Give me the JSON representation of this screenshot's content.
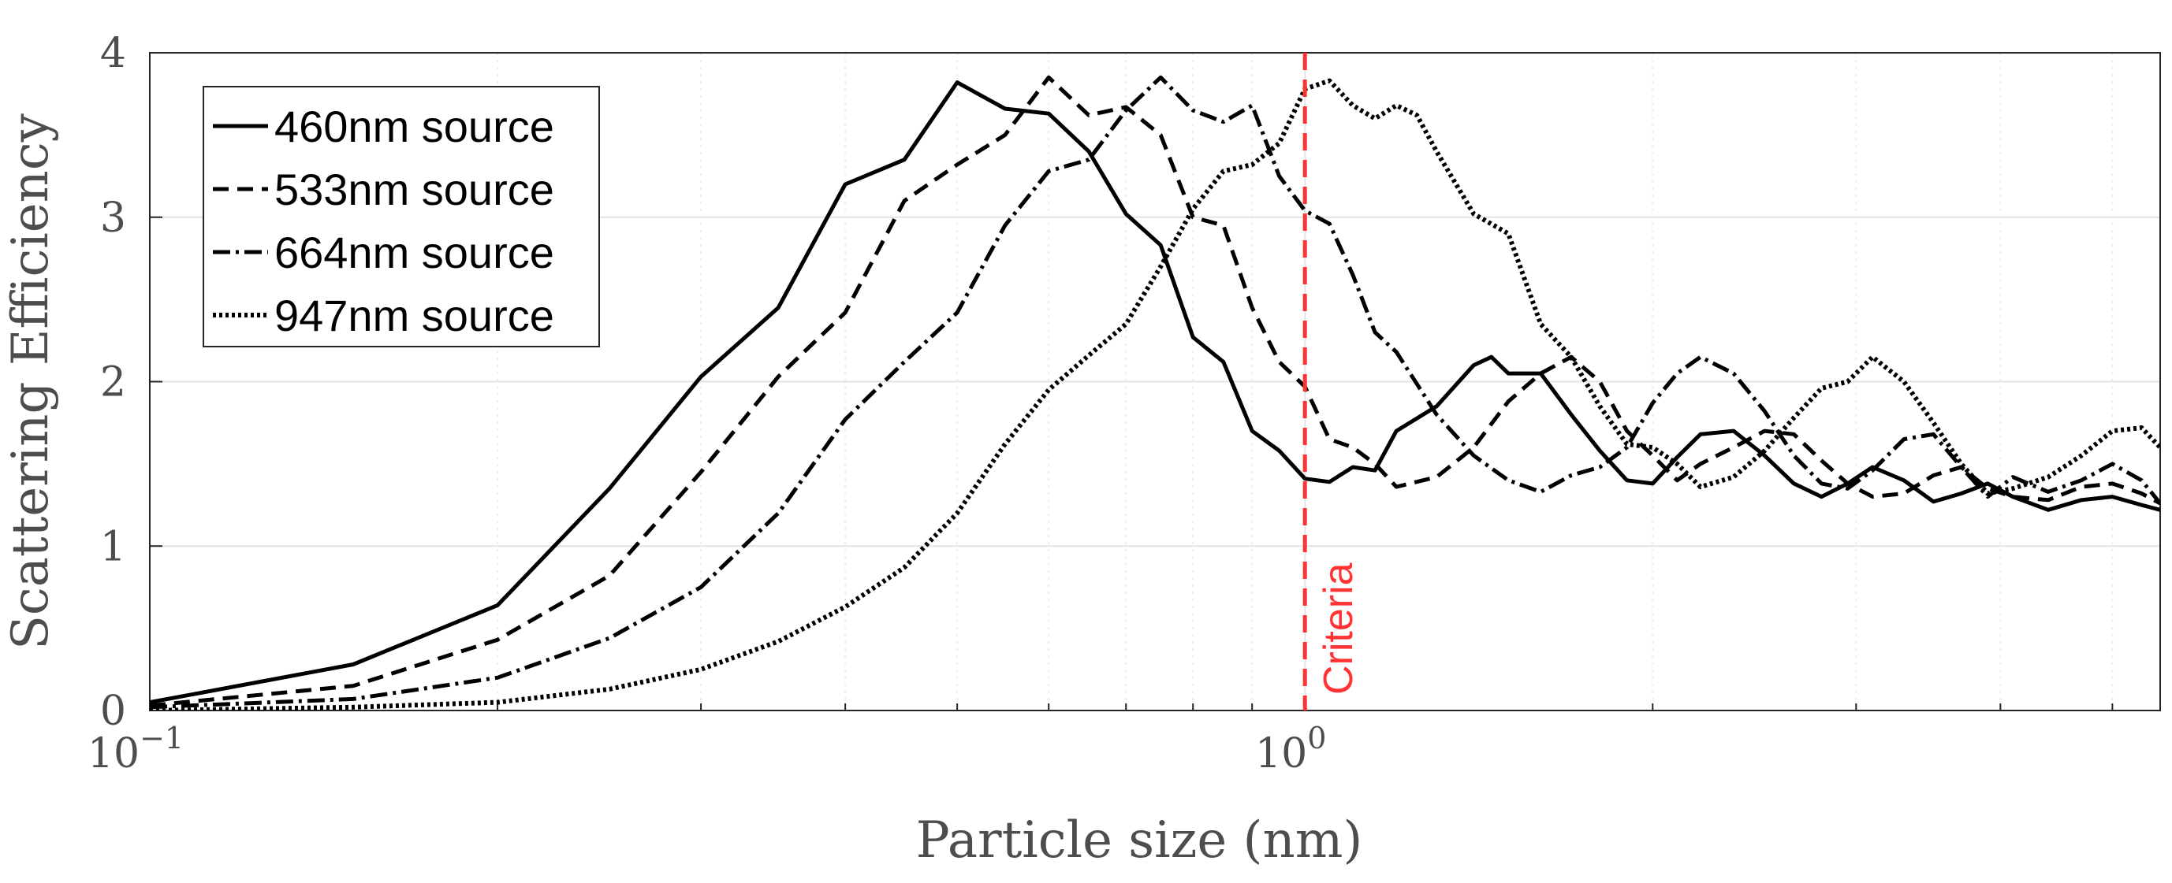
{
  "chart_data": {
    "type": "line",
    "xscale": "log",
    "xlabel": "Particle size (nm)",
    "ylabel": "Scattering Efficiency",
    "xlim": [
      0.1,
      5.5
    ],
    "ylim": [
      0,
      4
    ],
    "xticks": [
      {
        "value": 0.1,
        "base": "10",
        "exp": "−1"
      },
      {
        "value": 1,
        "base": "10",
        "exp": "0"
      }
    ],
    "yticks": [
      0,
      1,
      2,
      3,
      4
    ],
    "grid": true,
    "legend_position": "top-left",
    "series": [
      {
        "name": "460nm source",
        "dash": "solid",
        "x": [
          0.1,
          0.15,
          0.2,
          0.25,
          0.3,
          0.35,
          0.4,
          0.45,
          0.5,
          0.55,
          0.6,
          0.65,
          0.7,
          0.75,
          0.8,
          0.85,
          0.9,
          0.95,
          1.0,
          1.05,
          1.1,
          1.15,
          1.2,
          1.3,
          1.4,
          1.45,
          1.5,
          1.6,
          1.7,
          1.8,
          1.9,
          2.0,
          2.1,
          2.2,
          2.35,
          2.5,
          2.65,
          2.8,
          2.95,
          3.1,
          3.3,
          3.5,
          3.7,
          3.9,
          4.1,
          4.4,
          4.7,
          5.0,
          5.3,
          5.5
        ],
        "y": [
          0.05,
          0.28,
          0.64,
          1.35,
          2.03,
          2.45,
          3.2,
          3.35,
          3.82,
          3.66,
          3.63,
          3.4,
          3.02,
          2.83,
          2.27,
          2.12,
          1.7,
          1.58,
          1.41,
          1.39,
          1.48,
          1.46,
          1.7,
          1.85,
          2.1,
          2.15,
          2.05,
          2.05,
          1.8,
          1.58,
          1.4,
          1.38,
          1.54,
          1.68,
          1.7,
          1.55,
          1.38,
          1.3,
          1.38,
          1.48,
          1.4,
          1.27,
          1.32,
          1.38,
          1.3,
          1.22,
          1.28,
          1.3,
          1.25,
          1.22
        ]
      },
      {
        "name": "533nm source",
        "dash": "dashed",
        "x": [
          0.1,
          0.15,
          0.2,
          0.25,
          0.3,
          0.35,
          0.4,
          0.45,
          0.5,
          0.55,
          0.6,
          0.65,
          0.7,
          0.75,
          0.8,
          0.85,
          0.9,
          0.95,
          1.0,
          1.05,
          1.1,
          1.15,
          1.2,
          1.3,
          1.4,
          1.5,
          1.6,
          1.7,
          1.8,
          1.9,
          2.0,
          2.1,
          2.2,
          2.35,
          2.5,
          2.65,
          2.8,
          2.95,
          3.1,
          3.3,
          3.5,
          3.7,
          3.9,
          4.1,
          4.4,
          4.7,
          5.0,
          5.3,
          5.5
        ],
        "y": [
          0.03,
          0.15,
          0.43,
          0.82,
          1.45,
          2.03,
          2.42,
          3.1,
          3.32,
          3.5,
          3.85,
          3.62,
          3.67,
          3.5,
          3.0,
          2.95,
          2.45,
          2.12,
          1.97,
          1.65,
          1.6,
          1.5,
          1.36,
          1.42,
          1.6,
          1.88,
          2.05,
          2.15,
          2.0,
          1.7,
          1.55,
          1.4,
          1.5,
          1.6,
          1.7,
          1.68,
          1.52,
          1.38,
          1.3,
          1.32,
          1.43,
          1.48,
          1.35,
          1.3,
          1.28,
          1.36,
          1.38,
          1.32,
          1.26
        ]
      },
      {
        "name": "664nm source",
        "dash": "dashdot",
        "x": [
          0.1,
          0.15,
          0.2,
          0.25,
          0.3,
          0.35,
          0.4,
          0.45,
          0.5,
          0.55,
          0.6,
          0.65,
          0.7,
          0.75,
          0.8,
          0.85,
          0.9,
          0.95,
          1.0,
          1.05,
          1.1,
          1.15,
          1.2,
          1.3,
          1.4,
          1.5,
          1.6,
          1.7,
          1.8,
          1.9,
          2.0,
          2.1,
          2.2,
          2.35,
          2.5,
          2.65,
          2.8,
          2.95,
          3.1,
          3.3,
          3.5,
          3.7,
          3.9,
          4.1,
          4.4,
          4.7,
          5.0,
          5.3,
          5.5
        ],
        "y": [
          0.02,
          0.07,
          0.2,
          0.44,
          0.75,
          1.2,
          1.77,
          2.12,
          2.42,
          2.95,
          3.28,
          3.35,
          3.65,
          3.85,
          3.65,
          3.58,
          3.68,
          3.25,
          3.04,
          2.96,
          2.65,
          2.3,
          2.18,
          1.8,
          1.55,
          1.4,
          1.33,
          1.43,
          1.48,
          1.6,
          1.87,
          2.05,
          2.15,
          2.05,
          1.82,
          1.55,
          1.38,
          1.35,
          1.46,
          1.65,
          1.68,
          1.48,
          1.3,
          1.42,
          1.33,
          1.4,
          1.5,
          1.4,
          1.26
        ]
      },
      {
        "name": "947nm source",
        "dash": "dotted",
        "x": [
          0.1,
          0.15,
          0.2,
          0.25,
          0.3,
          0.35,
          0.4,
          0.45,
          0.5,
          0.55,
          0.6,
          0.65,
          0.7,
          0.75,
          0.8,
          0.85,
          0.9,
          0.95,
          1.0,
          1.05,
          1.1,
          1.15,
          1.2,
          1.25,
          1.3,
          1.4,
          1.5,
          1.6,
          1.7,
          1.8,
          1.9,
          2.0,
          2.1,
          2.2,
          2.35,
          2.5,
          2.65,
          2.8,
          2.95,
          3.1,
          3.3,
          3.5,
          3.7,
          3.9,
          4.1,
          4.4,
          4.7,
          5.0,
          5.3,
          5.5
        ],
        "y": [
          0.0,
          0.02,
          0.05,
          0.13,
          0.25,
          0.42,
          0.63,
          0.87,
          1.2,
          1.62,
          1.95,
          2.16,
          2.35,
          2.7,
          3.05,
          3.28,
          3.32,
          3.45,
          3.78,
          3.83,
          3.68,
          3.6,
          3.68,
          3.62,
          3.4,
          3.02,
          2.9,
          2.35,
          2.15,
          1.85,
          1.62,
          1.6,
          1.5,
          1.36,
          1.42,
          1.58,
          1.78,
          1.96,
          2.0,
          2.15,
          2.0,
          1.75,
          1.5,
          1.32,
          1.35,
          1.42,
          1.55,
          1.7,
          1.72,
          1.6
        ]
      }
    ],
    "annotations": [
      {
        "type": "vline",
        "x": 1.0,
        "label": "Criteria",
        "color": "#ff3333",
        "style": "dashed"
      }
    ]
  }
}
